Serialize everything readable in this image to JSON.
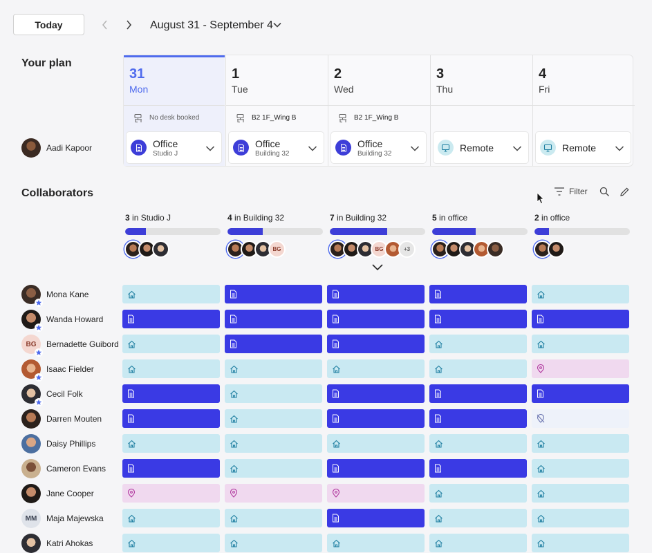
{
  "toolbar": {
    "today_label": "Today",
    "date_range": "August 31 - September 4"
  },
  "plan": {
    "title": "Your plan",
    "user": {
      "name": "Aadi Kapoor"
    },
    "days": [
      {
        "num": "31",
        "name": "Mon",
        "desk": "No desk booked",
        "location": "Office",
        "sub": "Studio J",
        "type": "office"
      },
      {
        "num": "1",
        "name": "Tue",
        "desk": "B2 1F_Wing B",
        "location": "Office",
        "sub": "Building 32",
        "type": "office"
      },
      {
        "num": "2",
        "name": "Wed",
        "desk": "B2 1F_Wing B",
        "location": "Office",
        "sub": "Building 32",
        "type": "office"
      },
      {
        "num": "3",
        "name": "Thu",
        "desk": "",
        "location": "Remote",
        "sub": "",
        "type": "remote"
      },
      {
        "num": "4",
        "name": "Fri",
        "desk": "",
        "location": "Remote",
        "sub": "",
        "type": "remote"
      }
    ]
  },
  "collaborators": {
    "title": "Collaborators",
    "filter_label": "Filter",
    "summary": [
      {
        "count": "3",
        "where": " in Studio J",
        "fill": 0.22,
        "avatars": [
          "p1",
          "p2",
          "p3"
        ],
        "more": ""
      },
      {
        "count": "4",
        "where": " in Building 32",
        "fill": 0.37,
        "avatars": [
          "p1",
          "p2",
          "p3",
          "BG"
        ],
        "more": ""
      },
      {
        "count": "7",
        "where": " in Building 32",
        "fill": 0.6,
        "avatars": [
          "p1",
          "p2",
          "p3",
          "BG",
          "p4"
        ],
        "more": "+3"
      },
      {
        "count": "5",
        "where": " in office",
        "fill": 0.46,
        "avatars": [
          "p1",
          "p2",
          "p3",
          "p4",
          "p5"
        ],
        "more": ""
      },
      {
        "count": "2",
        "where": " in office",
        "fill": 0.15,
        "avatars": [
          "p1",
          "p2"
        ],
        "more": ""
      }
    ],
    "people": [
      {
        "name": "Mona Kane",
        "avatar": "p5",
        "star": true,
        "days": [
          "remote",
          "office",
          "office",
          "office",
          "remote"
        ]
      },
      {
        "name": "Wanda Howard",
        "avatar": "p2",
        "star": true,
        "days": [
          "office",
          "office",
          "office",
          "office",
          "office"
        ]
      },
      {
        "name": "Bernadette Guibord",
        "avatar": "BG",
        "star": true,
        "days": [
          "remote",
          "office",
          "office",
          "remote",
          "remote"
        ]
      },
      {
        "name": "Isaac Fielder",
        "avatar": "p4",
        "star": true,
        "days": [
          "remote",
          "remote",
          "remote",
          "remote",
          "out"
        ]
      },
      {
        "name": "Cecil Folk",
        "avatar": "p3",
        "star": true,
        "days": [
          "office",
          "remote",
          "office",
          "office",
          "office"
        ]
      },
      {
        "name": "Darren Mouten",
        "avatar": "p1",
        "star": false,
        "days": [
          "office",
          "remote",
          "office",
          "office",
          "none"
        ]
      },
      {
        "name": "Daisy Phillips",
        "avatar": "p6",
        "star": false,
        "days": [
          "remote",
          "remote",
          "remote",
          "remote",
          "remote"
        ]
      },
      {
        "name": "Cameron Evans",
        "avatar": "p7",
        "star": false,
        "days": [
          "office",
          "remote",
          "office",
          "office",
          "remote"
        ]
      },
      {
        "name": "Jane Cooper",
        "avatar": "p2",
        "star": false,
        "days": [
          "out",
          "out",
          "out",
          "remote",
          "remote"
        ]
      },
      {
        "name": "Maja Majewska",
        "avatar": "MM",
        "star": false,
        "days": [
          "remote",
          "remote",
          "office",
          "remote",
          "remote"
        ]
      },
      {
        "name": "Katri Ahokas",
        "avatar": "p3",
        "star": false,
        "days": [
          "remote",
          "remote",
          "remote",
          "remote",
          "remote"
        ]
      }
    ]
  },
  "colors": {
    "office": "#3a3ae4",
    "remote": "#c9e9f2",
    "out": "#f0d9ef",
    "accent": "#4f6bed"
  }
}
